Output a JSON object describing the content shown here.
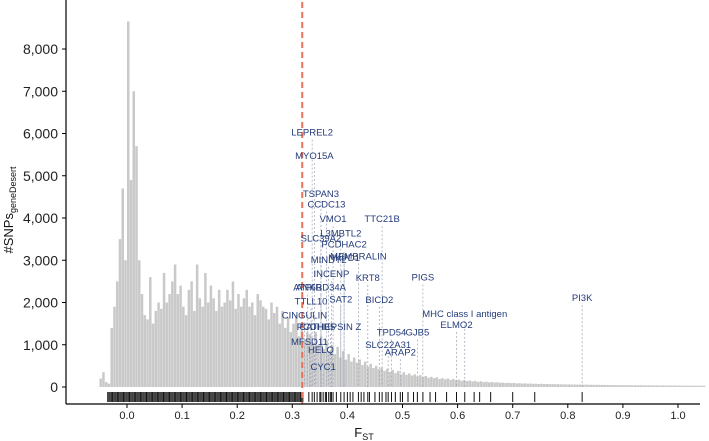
{
  "chart_data": {
    "type": "bar",
    "xlabel": "F",
    "xlabel_subscript": "ST",
    "ylabel": "#SNPs",
    "ylabel_subscript": "geneDesert",
    "xlim": [
      -0.1,
      1.05
    ],
    "ylim": [
      -420,
      8900
    ],
    "y_ticks": [
      {
        "value": 0,
        "label": "0"
      },
      {
        "value": 1000,
        "label": "1,000"
      },
      {
        "value": 2000,
        "label": "2,000"
      },
      {
        "value": 3000,
        "label": "3,000"
      },
      {
        "value": 4000,
        "label": "4,000"
      },
      {
        "value": 5000,
        "label": "5,000"
      },
      {
        "value": 6000,
        "label": "6,000"
      },
      {
        "value": 7000,
        "label": "7,000"
      },
      {
        "value": 8000,
        "label": "8,000"
      }
    ],
    "x_ticks": [
      {
        "value": 0.0,
        "label": "0.0"
      },
      {
        "value": 0.1,
        "label": "0.1"
      },
      {
        "value": 0.2,
        "label": "0.2"
      },
      {
        "value": 0.3,
        "label": "0.3"
      },
      {
        "value": 0.4,
        "label": "0.4"
      },
      {
        "value": 0.5,
        "label": "0.5"
      },
      {
        "value": 0.6,
        "label": "0.6"
      },
      {
        "value": 0.7,
        "label": "0.7"
      },
      {
        "value": 0.8,
        "label": "0.8"
      },
      {
        "value": 0.9,
        "label": "0.9"
      },
      {
        "value": 1.0,
        "label": "1.0"
      }
    ],
    "threshold": {
      "value": 0.318,
      "color": "#e8735a"
    },
    "histogram": {
      "color": "#c9c9c9",
      "start": -0.05,
      "bin_width": 0.005,
      "counts": [
        200,
        350,
        120,
        80,
        1400,
        1900,
        2500,
        3500,
        4700,
        3000,
        8650,
        4900,
        7000,
        5700,
        3000,
        2200,
        1700,
        1600,
        2600,
        1500,
        1800,
        2000,
        1850,
        2700,
        2000,
        2200,
        2500,
        2900,
        2200,
        2400,
        1900,
        1700,
        2300,
        2500,
        1800,
        2900,
        2100,
        1900,
        2700,
        2000,
        2400,
        2100,
        1800,
        2300,
        1900,
        2000,
        2300,
        2050,
        2500,
        1850,
        2200,
        1900,
        2100,
        2300,
        1900,
        2000,
        1700,
        2200,
        2050,
        1900,
        1850,
        1600,
        2000,
        1750,
        1900,
        1500,
        1800,
        1400,
        1650,
        1300,
        1500,
        1700,
        1200,
        1400,
        1100,
        1300,
        1250,
        1050,
        1300,
        1000,
        1200,
        900,
        1100,
        850,
        1000,
        780,
        950,
        700,
        850,
        650,
        780,
        600,
        700,
        580,
        650,
        520,
        600,
        480,
        550,
        450,
        500,
        420,
        460,
        380,
        430,
        350,
        400,
        330,
        380,
        300,
        350,
        290,
        320,
        270,
        300,
        250,
        280,
        240,
        260,
        220,
        240,
        210,
        230,
        190,
        210,
        180,
        200,
        170,
        190,
        160,
        175,
        150,
        165,
        140,
        155,
        130,
        145,
        120,
        135,
        115,
        125,
        110,
        118,
        105,
        112,
        100,
        105,
        95,
        100,
        90,
        95,
        85,
        90,
        82,
        86,
        78,
        82,
        75,
        78,
        72,
        75,
        70,
        72,
        68,
        70,
        65,
        68,
        62,
        65,
        60,
        62,
        58,
        60,
        56,
        58,
        54,
        56,
        52,
        54,
        50,
        52,
        50,
        50,
        48,
        48,
        46,
        46,
        45,
        45,
        44,
        44,
        43,
        43,
        42,
        42,
        41,
        41,
        40,
        40,
        39,
        39,
        38,
        38,
        37,
        37,
        36,
        36,
        35,
        35,
        34,
        34,
        33,
        33,
        32,
        32,
        31,
        31,
        30,
        30,
        30
      ]
    },
    "genes": [
      {
        "name": "LEPREL2",
        "fst": 0.336,
        "label_y": 5950
      },
      {
        "name": "MYO15A",
        "fst": 0.34,
        "label_y": 5400
      },
      {
        "name": "TSPAN3",
        "fst": 0.352,
        "label_y": 4500
      },
      {
        "name": "CCDC13",
        "fst": 0.362,
        "label_y": 4250
      },
      {
        "name": "VMO1",
        "fst": 0.374,
        "label_y": 3900
      },
      {
        "name": "TTC21B",
        "fst": 0.463,
        "label_y": 3900
      },
      {
        "name": "L3MBTL2",
        "fst": 0.388,
        "label_y": 3560
      },
      {
        "name": "SLC39A2",
        "fst": 0.352,
        "label_y": 3440
      },
      {
        "name": "PCDHAC2",
        "fst": 0.394,
        "label_y": 3300
      },
      {
        "name": "NKPD1",
        "fst": 0.394,
        "label_y": 2980
      },
      {
        "name": "MEMBRALIN",
        "fst": 0.42,
        "label_y": 3020
      },
      {
        "name": "MINDY2",
        "fst": 0.366,
        "label_y": 2940
      },
      {
        "name": "INCENP",
        "fst": 0.371,
        "label_y": 2600
      },
      {
        "name": "KRT8",
        "fst": 0.437,
        "label_y": 2510
      },
      {
        "name": "PIGS",
        "fst": 0.537,
        "label_y": 2520
      },
      {
        "name": "ATF6B",
        "fst": 0.328,
        "label_y": 2280
      },
      {
        "name": "ANKRD34A",
        "fst": 0.352,
        "label_y": 2280
      },
      {
        "name": "PI3K",
        "fst": 0.826,
        "label_y": 2030
      },
      {
        "name": "TTLL10",
        "fst": 0.334,
        "label_y": 1950
      },
      {
        "name": "SAT2",
        "fst": 0.388,
        "label_y": 2000
      },
      {
        "name": "BICD2",
        "fst": 0.458,
        "label_y": 1990
      },
      {
        "name": "MHC class I antigen",
        "fst": 0.613,
        "label_y": 1660
      },
      {
        "name": "CINGULIN",
        "fst": 0.322,
        "label_y": 1620
      },
      {
        "name": "PCDHB5",
        "fst": 0.343,
        "label_y": 1350
      },
      {
        "name": "CATHEPSIN Z",
        "fst": 0.369,
        "label_y": 1350
      },
      {
        "name": "ELMO2",
        "fst": 0.598,
        "label_y": 1400
      },
      {
        "name": "TPD54",
        "fst": 0.48,
        "label_y": 1220
      },
      {
        "name": "GJB5",
        "fst": 0.527,
        "label_y": 1220
      },
      {
        "name": "MFSD11",
        "fst": 0.331,
        "label_y": 1000
      },
      {
        "name": "SLC22A31",
        "fst": 0.474,
        "label_y": 920
      },
      {
        "name": "ARAP2",
        "fst": 0.496,
        "label_y": 750
      },
      {
        "name": "HELQ",
        "fst": 0.352,
        "label_y": 800
      },
      {
        "name": "CYC1",
        "fst": 0.356,
        "label_y": 400
      }
    ],
    "rug_fst": [
      0.33,
      0.336,
      0.34,
      0.345,
      0.35,
      0.352,
      0.356,
      0.36,
      0.362,
      0.366,
      0.369,
      0.371,
      0.374,
      0.38,
      0.388,
      0.394,
      0.4,
      0.405,
      0.41,
      0.42,
      0.425,
      0.43,
      0.437,
      0.44,
      0.45,
      0.458,
      0.463,
      0.47,
      0.474,
      0.48,
      0.487,
      0.496,
      0.5,
      0.51,
      0.52,
      0.527,
      0.537,
      0.55,
      0.56,
      0.58,
      0.598,
      0.613,
      0.63,
      0.64,
      0.66,
      0.7,
      0.74,
      0.826
    ]
  }
}
